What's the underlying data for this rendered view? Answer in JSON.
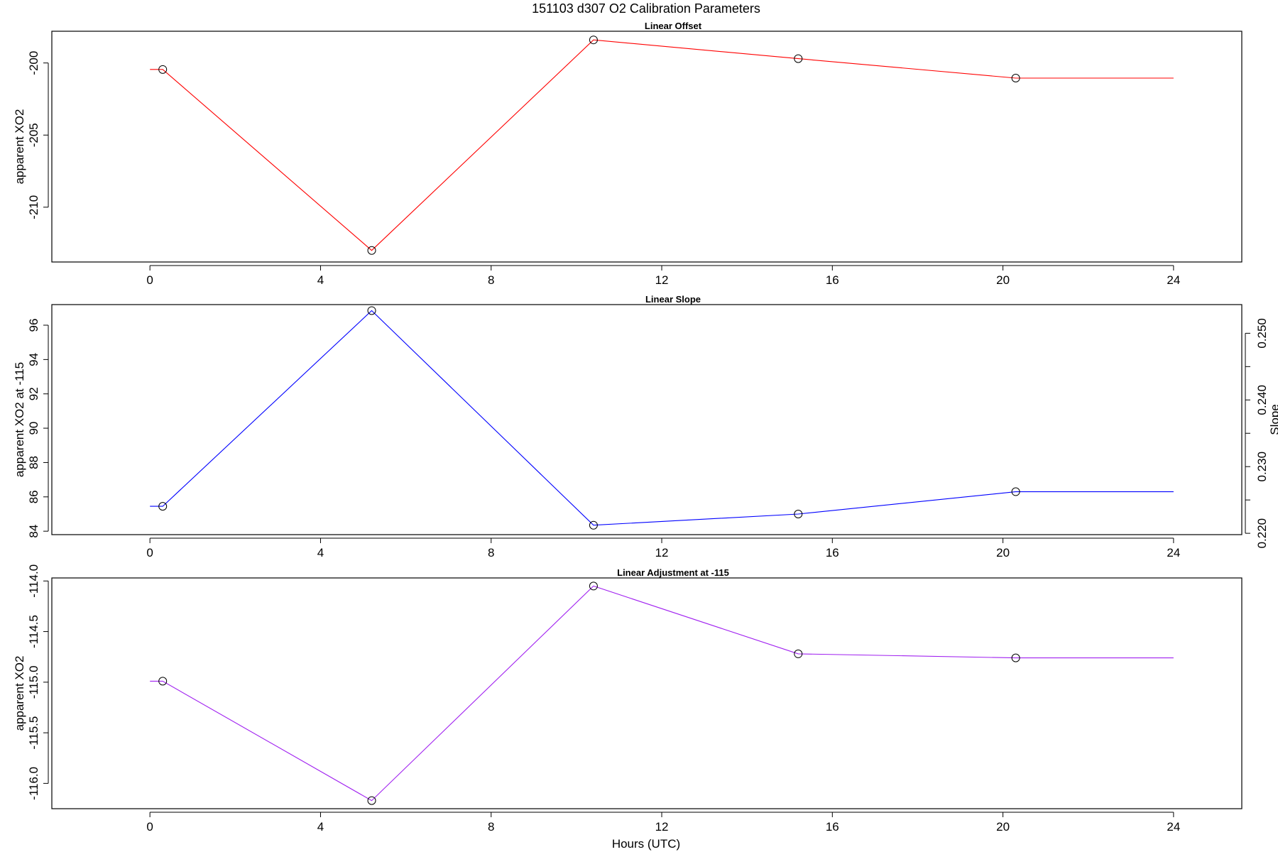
{
  "figure": {
    "title": "151103   d307   O2 Calibration Parameters",
    "xlabel": "Hours (UTC)"
  },
  "chart_data": [
    {
      "type": "line",
      "title": "Linear Offset",
      "xlabel": "",
      "ylabel": "apparent XO2",
      "color": "#ff0000",
      "xlim": [
        -2.3,
        25.6
      ],
      "ylim": [
        -213.8,
        -197.8
      ],
      "x_ticks": [
        0,
        4,
        8,
        12,
        16,
        20,
        24
      ],
      "x_tick_labels": [
        "0",
        "4",
        "8",
        "12",
        "16",
        "20",
        "24"
      ],
      "y_ticks": [
        -210,
        -205,
        -200
      ],
      "y_tick_labels": [
        "-210",
        "-205",
        "-200"
      ],
      "points": {
        "x": [
          0.3,
          5.2,
          10.4,
          15.2,
          20.3
        ],
        "y": [
          -200.45,
          -213.0,
          -198.4,
          -199.7,
          -201.05
        ]
      },
      "line": {
        "x": [
          0.0,
          0.3,
          5.2,
          10.4,
          15.2,
          20.3,
          24.0
        ],
        "y": [
          -200.45,
          -200.45,
          -213.0,
          -198.4,
          -199.7,
          -201.05,
          -201.05
        ]
      }
    },
    {
      "type": "line",
      "title": "Linear Slope",
      "xlabel": "",
      "ylabel": "apparent XO2 at -115",
      "ylabel_right": "Slope",
      "color": "#0000ff",
      "xlim": [
        -2.3,
        25.6
      ],
      "ylim": [
        83.8,
        97.2
      ],
      "ylim_right": [
        0.2198,
        0.2543
      ],
      "x_ticks": [
        0,
        4,
        8,
        12,
        16,
        20,
        24
      ],
      "x_tick_labels": [
        "0",
        "4",
        "8",
        "12",
        "16",
        "20",
        "24"
      ],
      "y_ticks": [
        84,
        86,
        88,
        90,
        92,
        94,
        96
      ],
      "y_tick_labels": [
        "84",
        "86",
        "88",
        "90",
        "92",
        "94",
        "96"
      ],
      "y_ticks_right": [
        0.22,
        0.225,
        0.23,
        0.235,
        0.24,
        0.245,
        0.25
      ],
      "y_tick_labels_right": [
        "0.220",
        "",
        "0.230",
        "",
        "0.240",
        "",
        "0.250"
      ],
      "points": {
        "x": [
          0.3,
          5.2,
          10.4,
          15.2,
          20.3
        ],
        "y": [
          85.45,
          96.85,
          84.35,
          85.0,
          86.3
        ]
      },
      "line": {
        "x": [
          0.0,
          0.3,
          5.2,
          10.4,
          15.2,
          20.3,
          24.0
        ],
        "y": [
          85.45,
          85.45,
          96.85,
          84.35,
          85.0,
          86.3,
          86.3
        ]
      }
    },
    {
      "type": "line",
      "title": "Linear Adjustment at -115",
      "xlabel": "Hours (UTC)",
      "ylabel": "apparent XO2",
      "color": "#a020f0",
      "xlim": [
        -2.3,
        25.6
      ],
      "ylim": [
        -116.25,
        -113.97
      ],
      "x_ticks": [
        0,
        4,
        8,
        12,
        16,
        20,
        24
      ],
      "x_tick_labels": [
        "0",
        "4",
        "8",
        "12",
        "16",
        "20",
        "24"
      ],
      "y_ticks": [
        -116.0,
        -115.5,
        -115.0,
        -114.5,
        -114.0
      ],
      "y_tick_labels": [
        "-116.0",
        "-115.5",
        "-115.0",
        "-114.5",
        "-114.0"
      ],
      "points": {
        "x": [
          0.3,
          5.2,
          10.4,
          15.2,
          20.3
        ],
        "y": [
          -114.99,
          -116.17,
          -114.05,
          -114.72,
          -114.76
        ]
      },
      "line": {
        "x": [
          0.0,
          0.3,
          5.2,
          10.4,
          15.2,
          20.3,
          24.0
        ],
        "y": [
          -114.99,
          -114.99,
          -116.17,
          -114.05,
          -114.72,
          -114.76,
          -114.76
        ]
      }
    }
  ]
}
